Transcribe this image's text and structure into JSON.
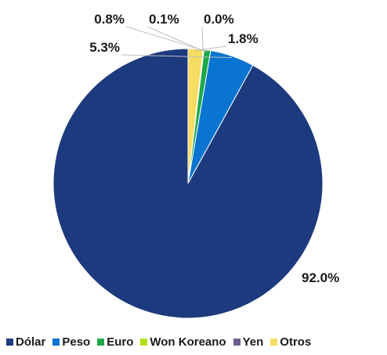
{
  "chart_data": {
    "type": "pie",
    "categories": [
      "Dólar",
      "Peso",
      "Euro",
      "Won Koreano",
      "Yen",
      "Otros"
    ],
    "values": [
      92.0,
      5.3,
      0.8,
      0.1,
      0.0,
      1.8
    ],
    "data_labels": [
      "92.0%",
      "5.3%",
      "0.8%",
      "0.1%",
      "0.0%",
      "1.8%"
    ],
    "colors": [
      "#1d3a7e",
      "#0a75d1",
      "#1fa84a",
      "#b6e01c",
      "#6d5e8e",
      "#f7dc62"
    ],
    "legend_position": "bottom"
  }
}
